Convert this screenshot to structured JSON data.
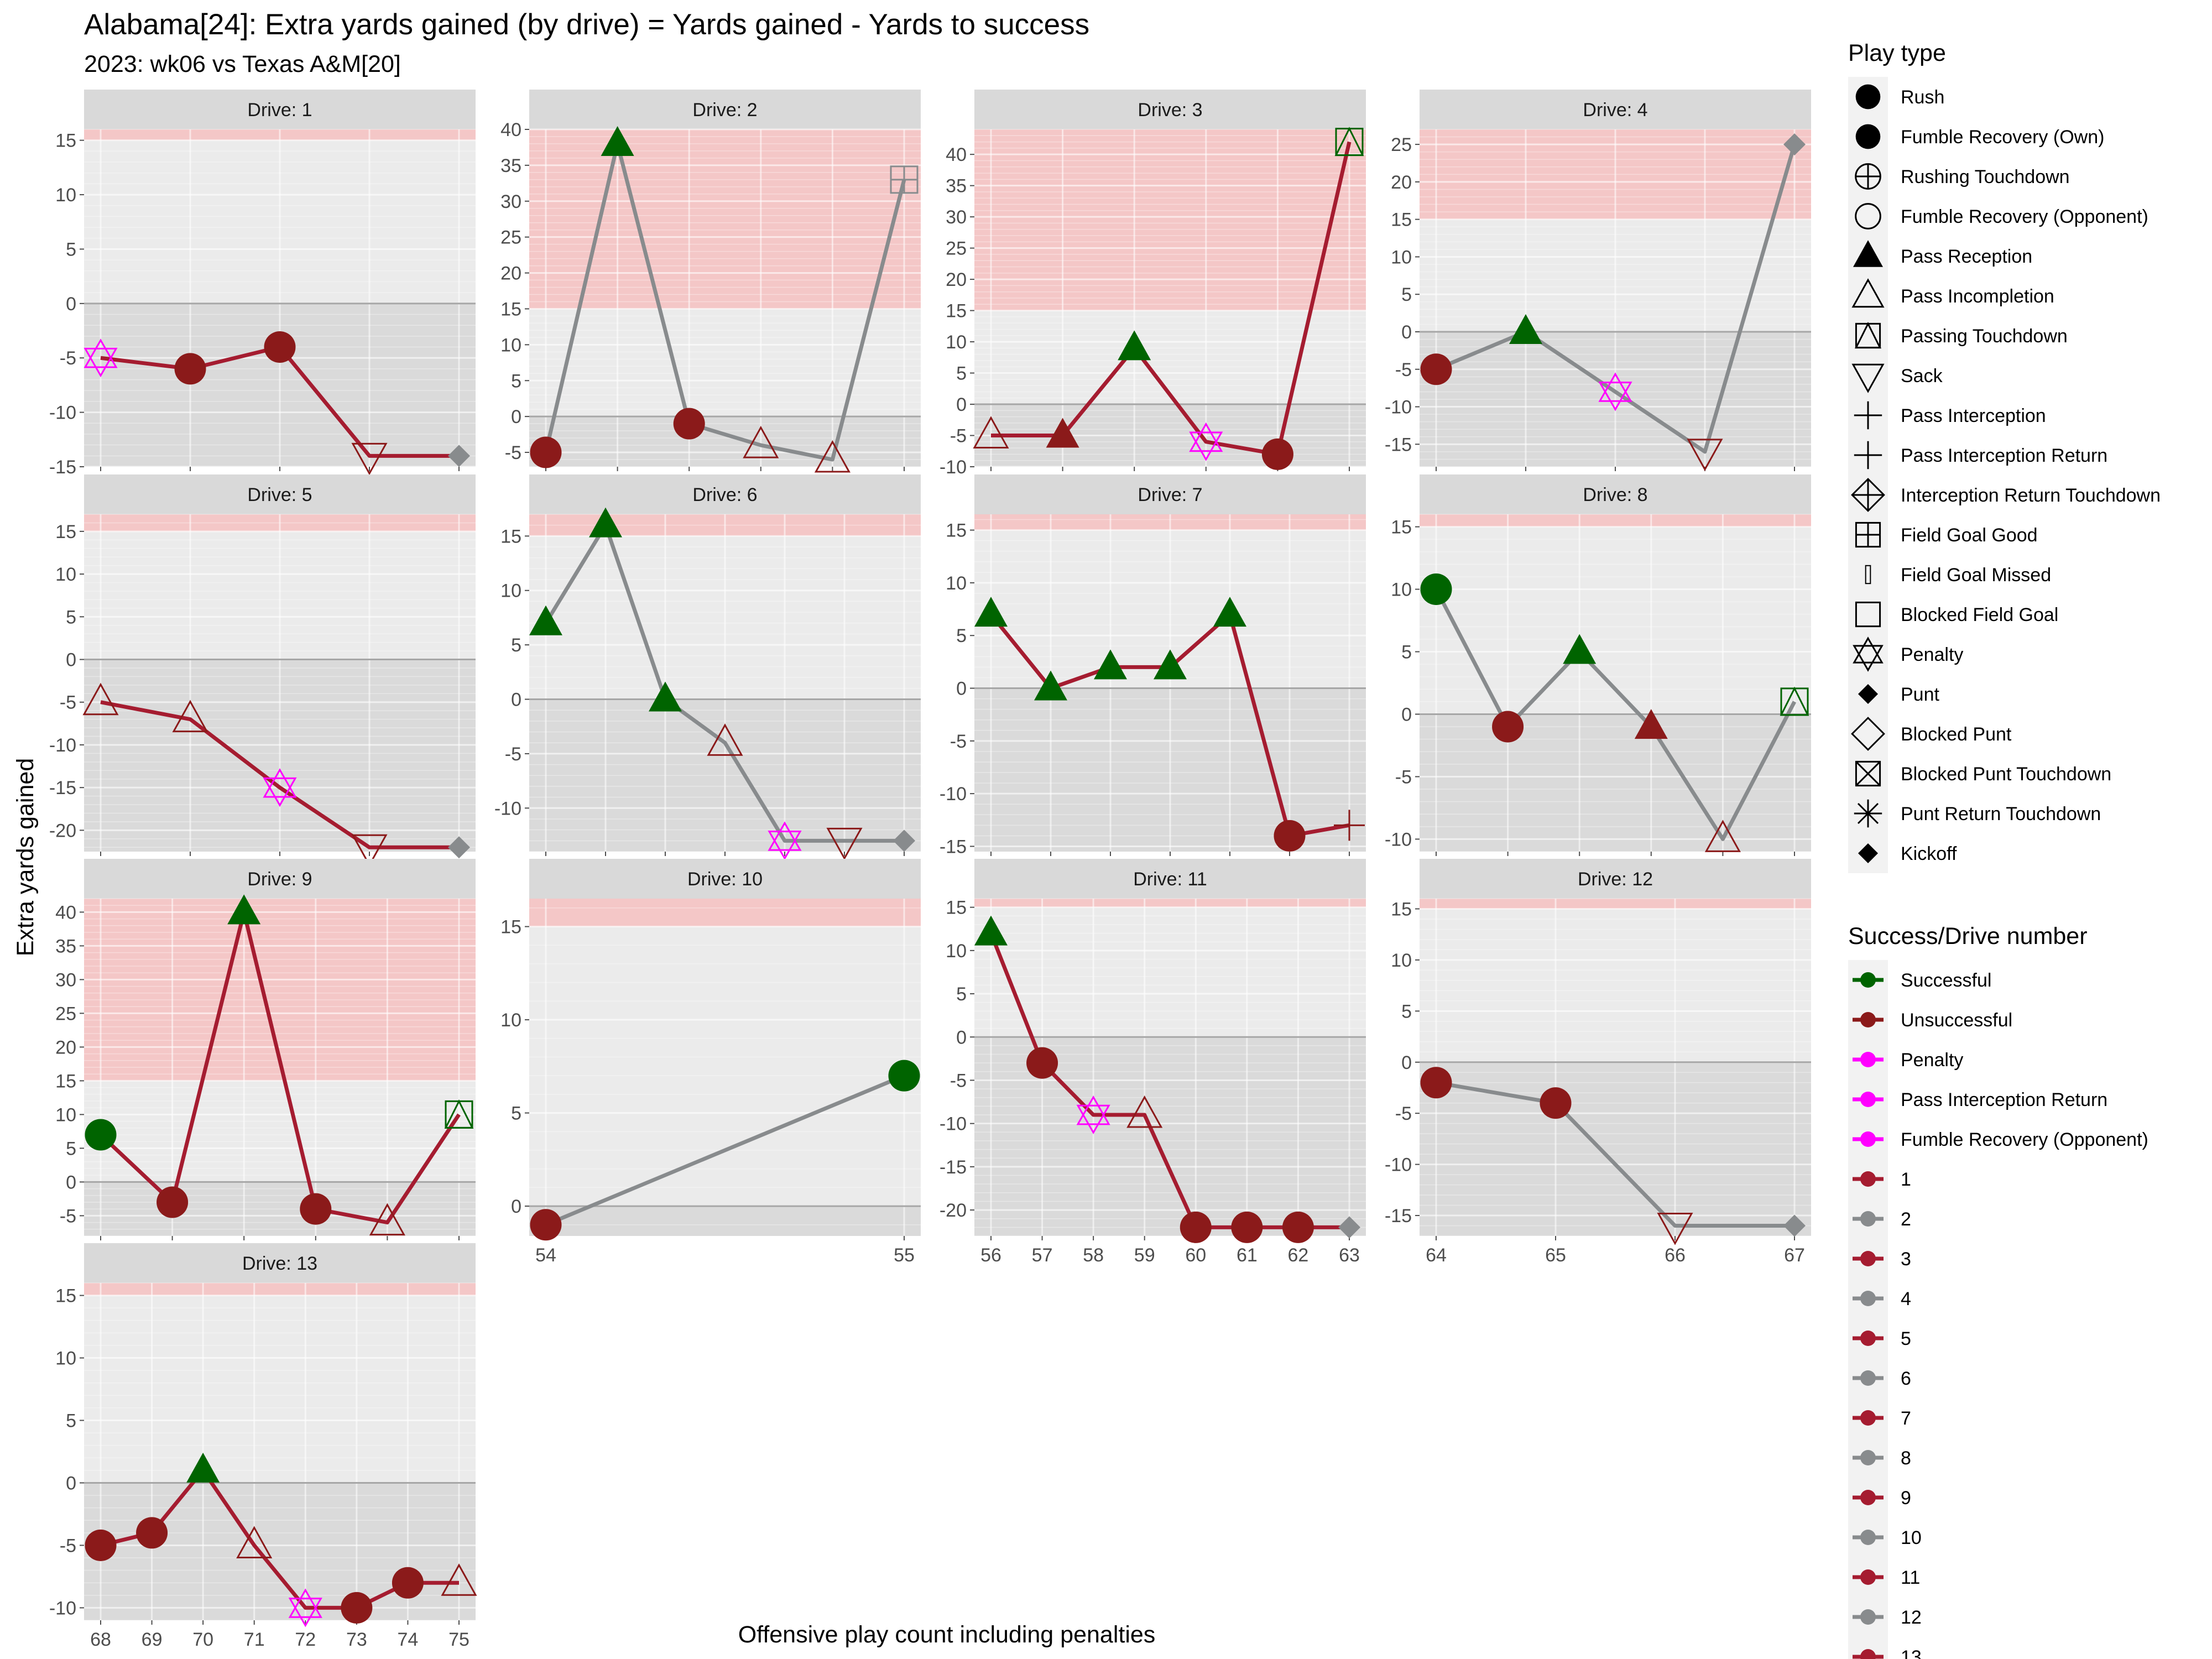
{
  "title": "Alabama[24]: Extra yards gained (by drive) = Yards gained - Yards to success",
  "subtitle": "2023: wk06 vs Texas A&M[20]",
  "chart_data": {
    "type": "line",
    "xlabel": "Offensive play count including penalties",
    "ylabel": "Extra yards gained",
    "facet_prefix": "Drive: ",
    "success_threshold": 15,
    "colors": {
      "successful": "#006400",
      "unsuccessful": "#8B1A1A",
      "penalty": "#FF00FF",
      "odd_drive": "#A51C30",
      "even_drive": "#888B8D",
      "zone": "#F4C7C7"
    },
    "drives": [
      {
        "drive": 1,
        "ylim": [
          -15,
          16
        ],
        "yticks": [
          -15,
          -10,
          -5,
          0,
          5,
          10,
          15
        ],
        "line": "odd",
        "plays": [
          {
            "x": 1,
            "y": -5,
            "shape": "penalty",
            "color": "penalty"
          },
          {
            "x": 2,
            "y": -6,
            "shape": "rush",
            "color": "unsuccessful"
          },
          {
            "x": 3,
            "y": -4,
            "shape": "rush",
            "color": "unsuccessful"
          },
          {
            "x": 4,
            "y": -14,
            "shape": "sack",
            "color": "unsuccessful"
          },
          {
            "x": 5,
            "y": -14,
            "shape": "punt",
            "color": "even_drive"
          }
        ]
      },
      {
        "drive": 2,
        "ylim": [
          -7,
          40
        ],
        "yticks": [
          -5,
          0,
          5,
          10,
          15,
          20,
          25,
          30,
          35,
          40
        ],
        "line": "even",
        "plays": [
          {
            "x": 6,
            "y": -5,
            "shape": "rush",
            "color": "unsuccessful"
          },
          {
            "x": 7,
            "y": 38,
            "shape": "pass_reception",
            "color": "successful"
          },
          {
            "x": 8,
            "y": -1,
            "shape": "rush",
            "color": "unsuccessful"
          },
          {
            "x": 9,
            "y": -4,
            "shape": "pass_incompletion",
            "color": "unsuccessful"
          },
          {
            "x": 10,
            "y": -6,
            "shape": "pass_incompletion",
            "color": "unsuccessful"
          },
          {
            "x": 11,
            "y": 33,
            "shape": "field_goal_good",
            "color": "even_drive"
          }
        ]
      },
      {
        "drive": 3,
        "ylim": [
          -10,
          44
        ],
        "yticks": [
          -10,
          -5,
          0,
          5,
          10,
          15,
          20,
          25,
          30,
          35,
          40
        ],
        "line": "odd",
        "plays": [
          {
            "x": 12,
            "y": -5,
            "shape": "pass_incompletion",
            "color": "unsuccessful"
          },
          {
            "x": 13,
            "y": -5,
            "shape": "pass_reception",
            "color": "unsuccessful"
          },
          {
            "x": 14,
            "y": 9,
            "shape": "pass_reception",
            "color": "successful"
          },
          {
            "x": 15,
            "y": -6,
            "shape": "penalty",
            "color": "penalty"
          },
          {
            "x": 16,
            "y": -8,
            "shape": "rush",
            "color": "unsuccessful"
          },
          {
            "x": 17,
            "y": 42,
            "shape": "passing_td",
            "color": "successful"
          }
        ]
      },
      {
        "drive": 4,
        "ylim": [
          -18,
          27
        ],
        "yticks": [
          -15,
          -10,
          -5,
          0,
          5,
          10,
          15,
          20,
          25
        ],
        "line": "even",
        "plays": [
          {
            "x": 18,
            "y": -5,
            "shape": "rush",
            "color": "unsuccessful"
          },
          {
            "x": 19,
            "y": 0,
            "shape": "pass_reception",
            "color": "successful"
          },
          {
            "x": 20,
            "y": -8,
            "shape": "penalty",
            "color": "penalty"
          },
          {
            "x": 21,
            "y": -16,
            "shape": "sack",
            "color": "unsuccessful"
          },
          {
            "x": 22,
            "y": 25,
            "shape": "punt",
            "color": "even_drive"
          }
        ]
      },
      {
        "drive": 5,
        "ylim": [
          -22.5,
          17
        ],
        "yticks": [
          -20,
          -15,
          -10,
          -5,
          0,
          5,
          10,
          15
        ],
        "line": "odd",
        "plays": [
          {
            "x": 23,
            "y": -5,
            "shape": "pass_incompletion",
            "color": "unsuccessful"
          },
          {
            "x": 24,
            "y": -7,
            "shape": "pass_incompletion",
            "color": "unsuccessful"
          },
          {
            "x": 25,
            "y": -15,
            "shape": "penalty",
            "color": "penalty"
          },
          {
            "x": 26,
            "y": -22,
            "shape": "sack",
            "color": "unsuccessful"
          },
          {
            "x": 27,
            "y": -22,
            "shape": "punt",
            "color": "even_drive"
          }
        ]
      },
      {
        "drive": 6,
        "ylim": [
          -14,
          17
        ],
        "yticks": [
          -10,
          -5,
          0,
          5,
          10,
          15
        ],
        "line": "even",
        "plays": [
          {
            "x": 28,
            "y": 7,
            "shape": "pass_reception",
            "color": "successful"
          },
          {
            "x": 29,
            "y": 16,
            "shape": "pass_reception",
            "color": "successful"
          },
          {
            "x": 30,
            "y": 0,
            "shape": "pass_reception",
            "color": "successful"
          },
          {
            "x": 31,
            "y": -4,
            "shape": "pass_incompletion",
            "color": "unsuccessful"
          },
          {
            "x": 32,
            "y": -13,
            "shape": "penalty",
            "color": "penalty"
          },
          {
            "x": 33,
            "y": -13,
            "shape": "sack",
            "color": "unsuccessful"
          },
          {
            "x": 34,
            "y": -13,
            "shape": "punt",
            "color": "even_drive"
          }
        ]
      },
      {
        "drive": 7,
        "ylim": [
          -15.5,
          16.5
        ],
        "yticks": [
          -15,
          -10,
          -5,
          0,
          5,
          10,
          15
        ],
        "line": "odd",
        "plays": [
          {
            "x": 35,
            "y": 7,
            "shape": "pass_reception",
            "color": "successful"
          },
          {
            "x": 36,
            "y": 0,
            "shape": "pass_reception",
            "color": "successful"
          },
          {
            "x": 37,
            "y": 2,
            "shape": "pass_reception",
            "color": "successful"
          },
          {
            "x": 38,
            "y": 2,
            "shape": "pass_reception",
            "color": "successful"
          },
          {
            "x": 39,
            "y": 7,
            "shape": "pass_reception",
            "color": "successful"
          },
          {
            "x": 40,
            "y": -14,
            "shape": "rush",
            "color": "unsuccessful"
          },
          {
            "x": 41,
            "y": -13,
            "shape": "pass_interception",
            "color": "unsuccessful"
          }
        ]
      },
      {
        "drive": 8,
        "ylim": [
          -11,
          16
        ],
        "yticks": [
          -10,
          -5,
          0,
          5,
          10,
          15
        ],
        "line": "even",
        "plays": [
          {
            "x": 42,
            "y": 10,
            "shape": "rush",
            "color": "successful"
          },
          {
            "x": 43,
            "y": -1,
            "shape": "rush",
            "color": "unsuccessful"
          },
          {
            "x": 44,
            "y": 5,
            "shape": "pass_reception",
            "color": "successful"
          },
          {
            "x": 45,
            "y": -1,
            "shape": "pass_reception",
            "color": "unsuccessful"
          },
          {
            "x": 46,
            "y": -10,
            "shape": "pass_incompletion",
            "color": "unsuccessful"
          },
          {
            "x": 47,
            "y": 1,
            "shape": "passing_td",
            "color": "successful"
          }
        ]
      },
      {
        "drive": 9,
        "ylim": [
          -8,
          42
        ],
        "yticks": [
          -5,
          0,
          5,
          10,
          15,
          20,
          25,
          30,
          35,
          40
        ],
        "line": "odd",
        "plays": [
          {
            "x": 48,
            "y": 7,
            "shape": "rush",
            "color": "successful"
          },
          {
            "x": 49,
            "y": -3,
            "shape": "rush",
            "color": "unsuccessful"
          },
          {
            "x": 50,
            "y": 40,
            "shape": "pass_reception",
            "color": "successful"
          },
          {
            "x": 51,
            "y": -4,
            "shape": "rush",
            "color": "unsuccessful"
          },
          {
            "x": 52,
            "y": -6,
            "shape": "pass_incompletion",
            "color": "unsuccessful"
          },
          {
            "x": 53,
            "y": 10,
            "shape": "passing_td",
            "color": "successful"
          }
        ]
      },
      {
        "drive": 10,
        "ylim": [
          -1.6,
          16.5
        ],
        "yticks": [
          0,
          5,
          10,
          15
        ],
        "line": "even",
        "plays": [
          {
            "x": 54,
            "y": -1,
            "shape": "rush",
            "color": "unsuccessful"
          },
          {
            "x": 55,
            "y": 7,
            "shape": "rush",
            "color": "successful"
          }
        ]
      },
      {
        "drive": 11,
        "ylim": [
          -23,
          16
        ],
        "yticks": [
          -20,
          -15,
          -10,
          -5,
          0,
          5,
          10,
          15
        ],
        "line": "odd",
        "plays": [
          {
            "x": 56,
            "y": 12,
            "shape": "pass_reception",
            "color": "successful"
          },
          {
            "x": 57,
            "y": -3,
            "shape": "rush",
            "color": "unsuccessful"
          },
          {
            "x": 58,
            "y": -9,
            "shape": "penalty",
            "color": "penalty"
          },
          {
            "x": 59,
            "y": -9,
            "shape": "pass_incompletion",
            "color": "unsuccessful"
          },
          {
            "x": 60,
            "y": -22,
            "shape": "rush",
            "color": "unsuccessful"
          },
          {
            "x": 61,
            "y": -22,
            "shape": "rush",
            "color": "unsuccessful"
          },
          {
            "x": 62,
            "y": -22,
            "shape": "rush",
            "color": "unsuccessful"
          },
          {
            "x": 63,
            "y": -22,
            "shape": "punt",
            "color": "even_drive"
          }
        ]
      },
      {
        "drive": 12,
        "ylim": [
          -17,
          16
        ],
        "yticks": [
          -15,
          -10,
          -5,
          0,
          5,
          10,
          15
        ],
        "line": "even",
        "plays": [
          {
            "x": 64,
            "y": -2,
            "shape": "rush",
            "color": "unsuccessful"
          },
          {
            "x": 65,
            "y": -4,
            "shape": "rush",
            "color": "unsuccessful"
          },
          {
            "x": 66,
            "y": -16,
            "shape": "sack",
            "color": "unsuccessful"
          },
          {
            "x": 67,
            "y": -16,
            "shape": "punt",
            "color": "even_drive"
          }
        ]
      },
      {
        "drive": 13,
        "ylim": [
          -11,
          16
        ],
        "yticks": [
          -10,
          -5,
          0,
          5,
          10,
          15
        ],
        "line": "odd",
        "plays": [
          {
            "x": 68,
            "y": -5,
            "shape": "rush",
            "color": "unsuccessful"
          },
          {
            "x": 69,
            "y": -4,
            "shape": "rush",
            "color": "unsuccessful"
          },
          {
            "x": 70,
            "y": 1,
            "shape": "pass_reception",
            "color": "successful"
          },
          {
            "x": 71,
            "y": -5,
            "shape": "pass_incompletion",
            "color": "unsuccessful"
          },
          {
            "x": 72,
            "y": -10,
            "shape": "penalty",
            "color": "penalty"
          },
          {
            "x": 73,
            "y": -10,
            "shape": "rush",
            "color": "unsuccessful"
          },
          {
            "x": 74,
            "y": -8,
            "shape": "rush",
            "color": "unsuccessful"
          },
          {
            "x": 75,
            "y": -8,
            "shape": "pass_incompletion",
            "color": "unsuccessful"
          }
        ]
      }
    ],
    "legend_play_type": {
      "title": "Play type",
      "items": [
        {
          "label": "Rush",
          "shape": "circle_filled"
        },
        {
          "label": "Fumble Recovery (Own)",
          "shape": "circle_filled"
        },
        {
          "label": "Rushing Touchdown",
          "shape": "circle_plus"
        },
        {
          "label": "Fumble Recovery (Opponent)",
          "shape": "circle_open"
        },
        {
          "label": "Pass Reception",
          "shape": "triangle_filled"
        },
        {
          "label": "Pass Incompletion",
          "shape": "triangle_open"
        },
        {
          "label": "Passing Touchdown",
          "shape": "square_triangle"
        },
        {
          "label": "Sack",
          "shape": "triangle_down_open"
        },
        {
          "label": "Pass Interception",
          "shape": "plus"
        },
        {
          "label": "Pass Interception Return",
          "shape": "plus"
        },
        {
          "label": "Interception Return Touchdown",
          "shape": "diamond_plus"
        },
        {
          "label": "Field Goal Good",
          "shape": "square_plus"
        },
        {
          "label": "Field Goal Missed",
          "shape": "thin_bar"
        },
        {
          "label": "Blocked Field Goal",
          "shape": "square_open"
        },
        {
          "label": "Penalty",
          "shape": "star_of_david"
        },
        {
          "label": "Punt",
          "shape": "diamond_filled"
        },
        {
          "label": "Blocked Punt",
          "shape": "diamond_open"
        },
        {
          "label": "Blocked Punt Touchdown",
          "shape": "square_x"
        },
        {
          "label": "Punt Return Touchdown",
          "shape": "asterisk"
        },
        {
          "label": "Kickoff",
          "shape": "diamond_filled"
        }
      ]
    },
    "legend_success": {
      "title": "Success/Drive number",
      "items": [
        {
          "label": "Successful",
          "color": "#006400"
        },
        {
          "label": "Unsuccessful",
          "color": "#8B1A1A"
        },
        {
          "label": "Penalty",
          "color": "#FF00FF"
        },
        {
          "label": "Pass Interception Return",
          "color": "#FF00FF"
        },
        {
          "label": "Fumble Recovery (Opponent)",
          "color": "#FF00FF"
        },
        {
          "label": "1",
          "color": "#A51C30"
        },
        {
          "label": "2",
          "color": "#888B8D"
        },
        {
          "label": "3",
          "color": "#A51C30"
        },
        {
          "label": "4",
          "color": "#888B8D"
        },
        {
          "label": "5",
          "color": "#A51C30"
        },
        {
          "label": "6",
          "color": "#888B8D"
        },
        {
          "label": "7",
          "color": "#A51C30"
        },
        {
          "label": "8",
          "color": "#888B8D"
        },
        {
          "label": "9",
          "color": "#A51C30"
        },
        {
          "label": "10",
          "color": "#888B8D"
        },
        {
          "label": "11",
          "color": "#A51C30"
        },
        {
          "label": "12",
          "color": "#888B8D"
        },
        {
          "label": "13",
          "color": "#A51C30"
        }
      ]
    }
  }
}
